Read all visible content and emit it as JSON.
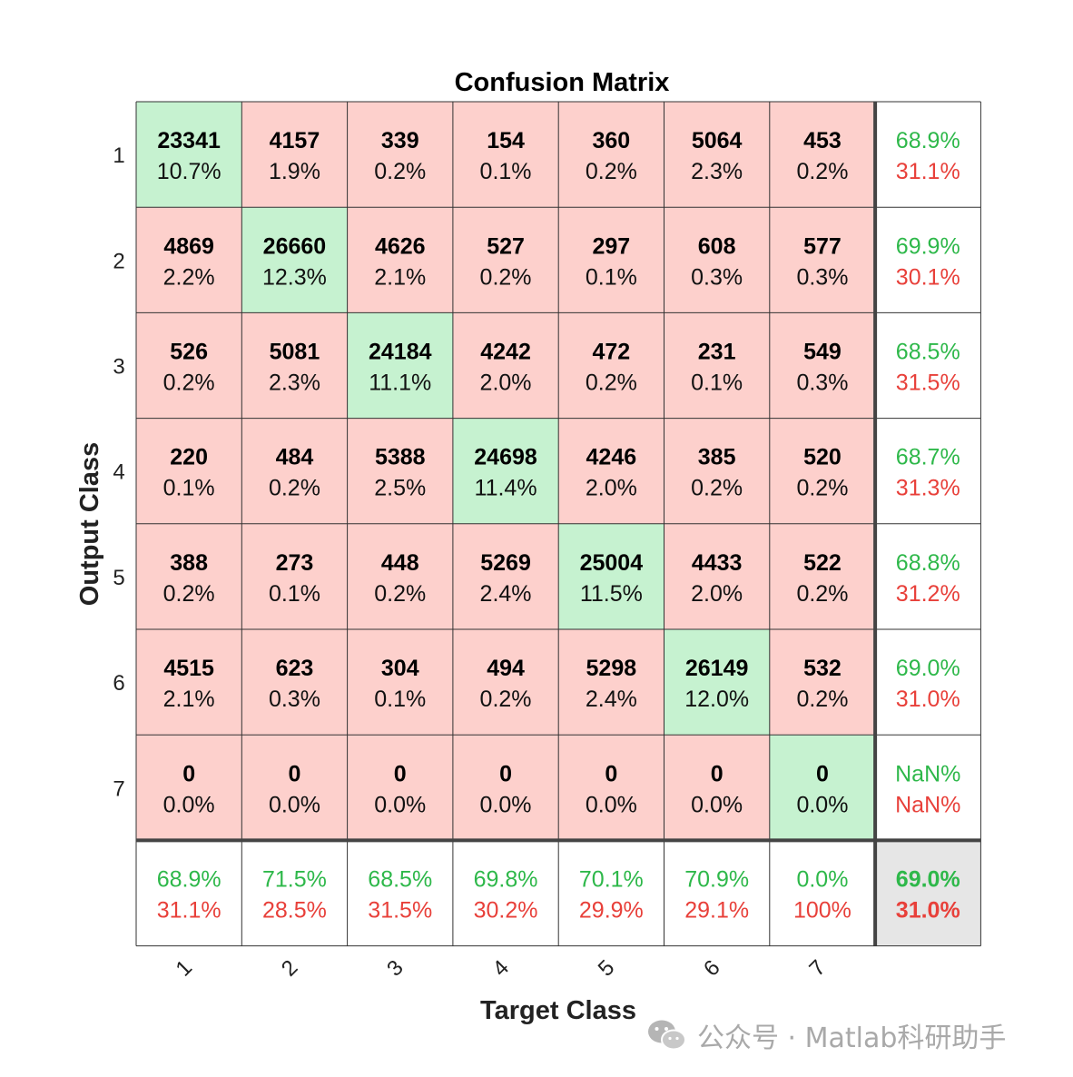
{
  "chart_data": {
    "type": "heatmap",
    "title": "Confusion Matrix",
    "xlabel": "Target Class",
    "ylabel": "Output Class",
    "x_tick_labels": [
      "1",
      "2",
      "3",
      "4",
      "5",
      "6",
      "7"
    ],
    "y_tick_labels": [
      "1",
      "2",
      "3",
      "4",
      "5",
      "6",
      "7"
    ],
    "counts": [
      [
        23341,
        4157,
        339,
        154,
        360,
        5064,
        453
      ],
      [
        4869,
        26660,
        4626,
        527,
        297,
        608,
        577
      ],
      [
        526,
        5081,
        24184,
        4242,
        472,
        231,
        549
      ],
      [
        220,
        484,
        5388,
        24698,
        4246,
        385,
        520
      ],
      [
        388,
        273,
        448,
        5269,
        25004,
        4433,
        522
      ],
      [
        4515,
        623,
        304,
        494,
        5298,
        26149,
        532
      ],
      [
        0,
        0,
        0,
        0,
        0,
        0,
        0
      ]
    ],
    "percentages": [
      [
        "10.7%",
        "1.9%",
        "0.2%",
        "0.1%",
        "0.2%",
        "2.3%",
        "0.2%"
      ],
      [
        "2.2%",
        "12.3%",
        "2.1%",
        "0.2%",
        "0.1%",
        "0.3%",
        "0.3%"
      ],
      [
        "0.2%",
        "2.3%",
        "11.1%",
        "2.0%",
        "0.2%",
        "0.1%",
        "0.3%"
      ],
      [
        "0.1%",
        "0.2%",
        "2.5%",
        "11.4%",
        "2.0%",
        "0.2%",
        "0.2%"
      ],
      [
        "0.2%",
        "0.1%",
        "0.2%",
        "2.4%",
        "11.5%",
        "2.0%",
        "0.2%"
      ],
      [
        "2.1%",
        "0.3%",
        "0.1%",
        "0.2%",
        "2.4%",
        "12.0%",
        "0.2%"
      ],
      [
        "0.0%",
        "0.0%",
        "0.0%",
        "0.0%",
        "0.0%",
        "0.0%",
        "0.0%"
      ]
    ],
    "row_summary": [
      [
        "68.9%",
        "31.1%"
      ],
      [
        "69.9%",
        "30.1%"
      ],
      [
        "68.5%",
        "31.5%"
      ],
      [
        "68.7%",
        "31.3%"
      ],
      [
        "68.8%",
        "31.2%"
      ],
      [
        "69.0%",
        "31.0%"
      ],
      [
        "NaN%",
        "NaN%"
      ]
    ],
    "column_summary": [
      [
        "68.9%",
        "31.1%"
      ],
      [
        "71.5%",
        "28.5%"
      ],
      [
        "68.5%",
        "31.5%"
      ],
      [
        "69.8%",
        "30.2%"
      ],
      [
        "70.1%",
        "29.9%"
      ],
      [
        "70.9%",
        "29.1%"
      ],
      [
        "0.0%",
        "100%"
      ]
    ],
    "overall_summary": [
      "69.0%",
      "31.0%"
    ],
    "colors": {
      "correct_cell": "#c6f2d0",
      "incorrect_cell": "#fdd0cc",
      "summary_cell": "#ffffff",
      "overall_cell": "#e6e6e6",
      "correct_text": "#2eb84a",
      "incorrect_text": "#e8403a",
      "grid_line": "#333333"
    }
  },
  "watermark": {
    "icon": "wechat-icon",
    "text": "公众号 · Matlab科研助手"
  }
}
